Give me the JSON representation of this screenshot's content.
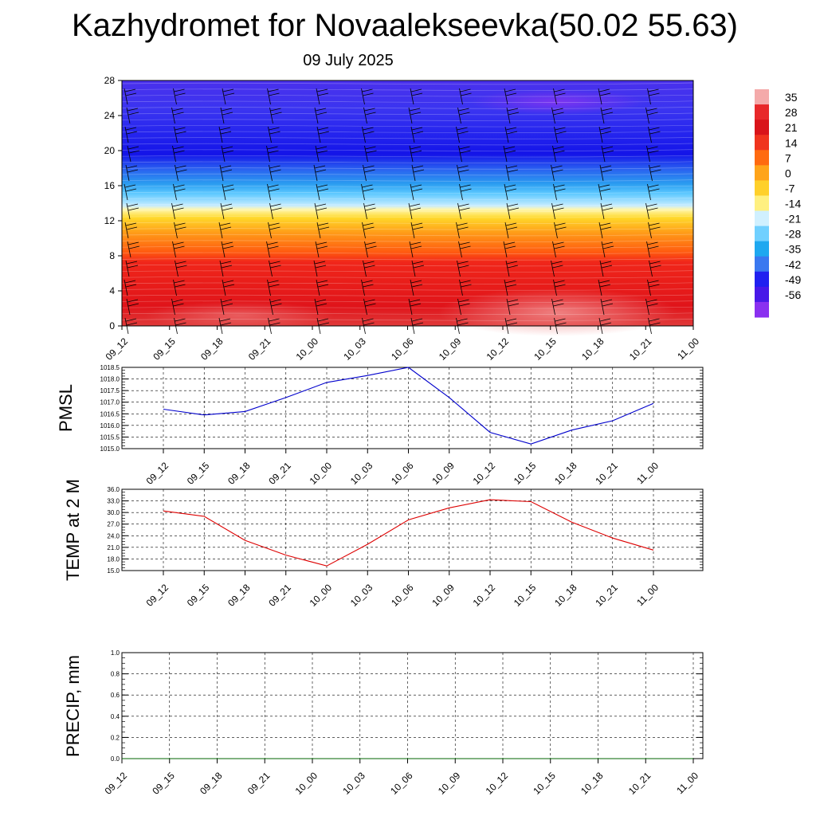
{
  "title": "Kazhydromet for Novaalekseevka(50.02 55.63)",
  "subtitle": "09 July 2025",
  "chart_data": [
    {
      "type": "heatmap",
      "name": "vertical-cross-section",
      "x": [
        "09_12",
        "09_15",
        "09_18",
        "09_21",
        "10_00",
        "10_03",
        "10_06",
        "10_09",
        "10_12",
        "10_15",
        "10_18",
        "10_21",
        "11_00"
      ],
      "y_ticks": [
        0,
        4,
        8,
        12,
        16,
        20,
        24,
        28
      ],
      "ylim": [
        0,
        28
      ],
      "colorbar": {
        "labels": [
          "35",
          "28",
          "21",
          "14",
          "7",
          "0",
          "-7",
          "-14",
          "-21",
          "-28",
          "-35",
          "-42",
          "-49",
          "-56"
        ],
        "colors": [
          "#f4aaaa",
          "#e8282a",
          "#d9141a",
          "#f0341e",
          "#ff6a10",
          "#ffa41a",
          "#ffd02a",
          "#fff080",
          "#d0f0ff",
          "#70d0ff",
          "#1ea8f0",
          "#3a78f0",
          "#2020f0",
          "#4818e8",
          "#8a30f0"
        ]
      }
    },
    {
      "type": "line",
      "ylabel": "PMSL",
      "x": [
        "09_12",
        "09_15",
        "09_18",
        "09_21",
        "10_00",
        "10_03",
        "10_06",
        "10_09",
        "10_12",
        "10_15",
        "10_18",
        "10_21",
        "11_00"
      ],
      "values": [
        1016.7,
        1016.45,
        1016.6,
        1017.2,
        1017.85,
        1018.15,
        1018.5,
        1017.2,
        1015.7,
        1015.2,
        1015.8,
        1016.2,
        1016.95
      ],
      "ylim": [
        1015.0,
        1018.5
      ],
      "y_ticks": [
        "1015.0",
        "1015.5",
        "1016.0",
        "1016.5",
        "1017.0",
        "1017.5",
        "1018.0",
        "1018.5"
      ],
      "color": "#0000cc",
      "grid": true
    },
    {
      "type": "line",
      "ylabel": "TEMP at 2 M",
      "x": [
        "09_12",
        "09_15",
        "09_18",
        "09_21",
        "10_00",
        "10_03",
        "10_06",
        "10_09",
        "10_12",
        "10_15",
        "10_18",
        "10_21",
        "11_00"
      ],
      "values": [
        30.4,
        29.0,
        22.8,
        19.0,
        16.2,
        21.8,
        28.1,
        31.2,
        33.3,
        32.8,
        27.5,
        23.4,
        20.3
      ],
      "ylim": [
        15.0,
        36.0
      ],
      "y_ticks": [
        "15.0",
        "18.0",
        "21.0",
        "24.0",
        "27.0",
        "30.0",
        "33.0",
        "36.0"
      ],
      "color": "#dd0000",
      "grid": true
    },
    {
      "type": "line",
      "ylabel": "PRECIP, mm",
      "x": [
        "09_12",
        "09_15",
        "09_18",
        "09_21",
        "10_00",
        "10_03",
        "10_06",
        "10_09",
        "10_12",
        "10_15",
        "10_18",
        "10_21",
        "11_00"
      ],
      "values": [
        0,
        0,
        0,
        0,
        0,
        0,
        0,
        0,
        0,
        0,
        0,
        0,
        0
      ],
      "ylim": [
        0.0,
        1.0
      ],
      "y_ticks": [
        "0.0",
        "0.2",
        "0.4",
        "0.6",
        "0.8",
        "1.0"
      ],
      "color": "#006600",
      "grid": true
    }
  ]
}
